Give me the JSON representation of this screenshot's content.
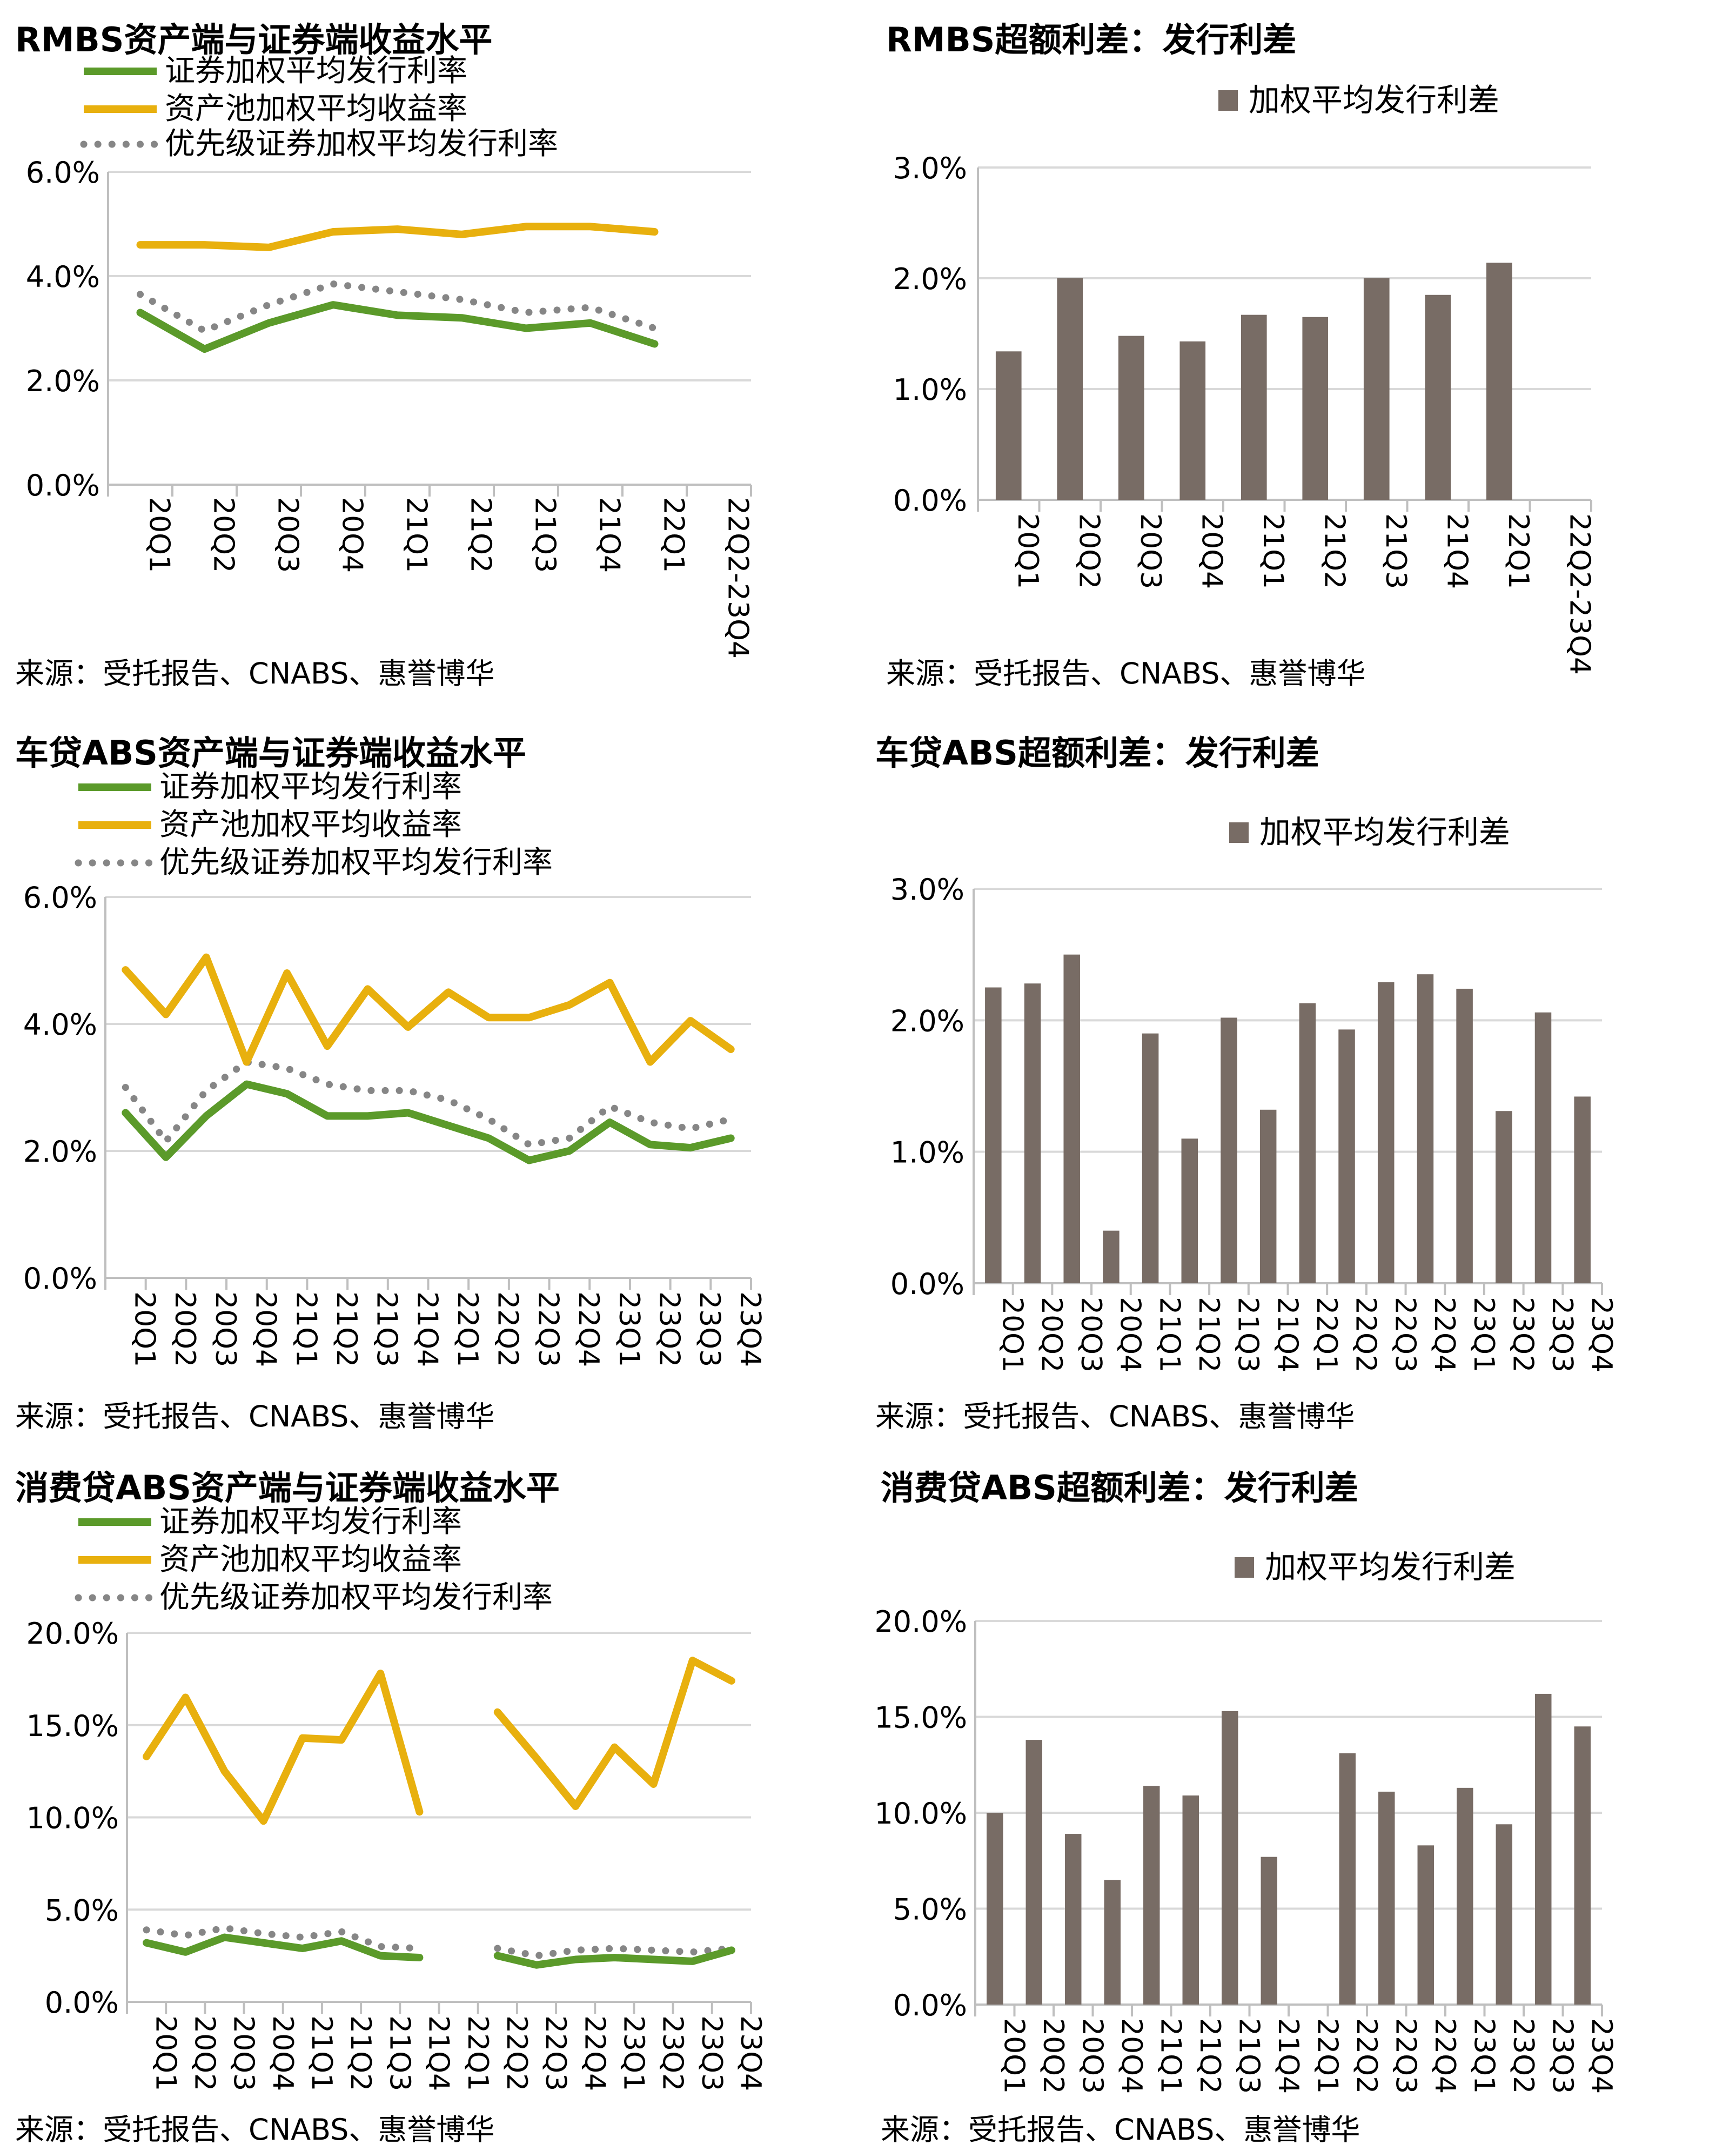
{
  "colors": {
    "green": "#5B9A2A",
    "gold": "#E8B00E",
    "dots": "#868686",
    "bar": "#786C65",
    "grid": "#D9D9D9",
    "axis": "#BFBFBF"
  },
  "legend_labels": {
    "green_line": "证券加权平均发行利率",
    "gold_line": "资产池加权平均收益率",
    "dotted_line": "优先级证券加权平均发行利率",
    "bar": "加权平均发行利差"
  },
  "chart_data": [
    {
      "type": "line",
      "title": "RMBS资产端与证券端收益水平",
      "source": "来源：受托报告、CNABS、惠誉博华",
      "categories": [
        "20Q1",
        "20Q2",
        "20Q3",
        "20Q4",
        "21Q1",
        "21Q2",
        "21Q3",
        "21Q4",
        "22Q1",
        "22Q2-23Q4"
      ],
      "y_ticks": [
        "0.0%",
        "2.0%",
        "4.0%",
        "6.0%"
      ],
      "ylim": [
        0,
        6
      ],
      "series": [
        {
          "name": "证券加权平均发行利率",
          "style": "green",
          "values": [
            3.3,
            2.6,
            3.1,
            3.45,
            3.25,
            3.2,
            3.0,
            3.1,
            2.7,
            null
          ]
        },
        {
          "name": "资产池加权平均收益率",
          "style": "gold",
          "values": [
            4.6,
            4.6,
            4.55,
            4.85,
            4.9,
            4.8,
            4.95,
            4.95,
            4.85,
            null
          ]
        },
        {
          "name": "优先级证券加权平均发行利率",
          "style": "dots",
          "values": [
            3.65,
            2.95,
            3.45,
            3.85,
            3.7,
            3.55,
            3.3,
            3.4,
            3.0,
            null
          ]
        }
      ]
    },
    {
      "type": "bar",
      "title": "RMBS超额利差：发行利差",
      "source": "来源：受托报告、CNABS、惠誉博华",
      "categories": [
        "20Q1",
        "20Q2",
        "20Q3",
        "20Q4",
        "21Q1",
        "21Q2",
        "21Q3",
        "21Q4",
        "22Q1",
        "22Q2-23Q4"
      ],
      "y_ticks": [
        "0.0%",
        "1.0%",
        "2.0%",
        "3.0%"
      ],
      "ylim": [
        0,
        3
      ],
      "series": [
        {
          "name": "加权平均发行利差",
          "values": [
            1.34,
            2.0,
            1.48,
            1.43,
            1.67,
            1.65,
            2.0,
            1.85,
            2.14,
            null
          ]
        }
      ]
    },
    {
      "type": "line",
      "title": "车贷ABS资产端与证券端收益水平",
      "source": "来源：受托报告、CNABS、惠誉博华",
      "categories": [
        "20Q1",
        "20Q2",
        "20Q3",
        "20Q4",
        "21Q1",
        "21Q2",
        "21Q3",
        "21Q4",
        "22Q1",
        "22Q2",
        "22Q3",
        "22Q4",
        "23Q1",
        "23Q2",
        "23Q3",
        "23Q4"
      ],
      "y_ticks": [
        "0.0%",
        "2.0%",
        "4.0%",
        "6.0%"
      ],
      "ylim": [
        0,
        6
      ],
      "series": [
        {
          "name": "证券加权平均发行利率",
          "style": "green",
          "values": [
            2.6,
            1.9,
            2.55,
            3.05,
            2.9,
            2.55,
            2.55,
            2.6,
            2.4,
            2.2,
            1.85,
            2.0,
            2.45,
            2.1,
            2.05,
            2.2
          ]
        },
        {
          "name": "资产池加权平均收益率",
          "style": "gold",
          "values": [
            4.85,
            4.15,
            5.05,
            3.4,
            4.8,
            3.65,
            4.55,
            3.95,
            4.5,
            4.1,
            4.1,
            4.3,
            4.65,
            3.4,
            4.05,
            3.6
          ]
        },
        {
          "name": "优先级证券加权平均发行利率",
          "style": "dots",
          "values": [
            3.0,
            2.15,
            2.95,
            3.4,
            3.3,
            3.05,
            2.95,
            2.95,
            2.8,
            2.5,
            2.1,
            2.2,
            2.7,
            2.45,
            2.35,
            2.5
          ]
        }
      ]
    },
    {
      "type": "bar",
      "title": "车贷ABS超额利差：发行利差",
      "source": "来源：受托报告、CNABS、惠誉博华",
      "categories": [
        "20Q1",
        "20Q2",
        "20Q3",
        "20Q4",
        "21Q1",
        "21Q2",
        "21Q3",
        "21Q4",
        "22Q1",
        "22Q2",
        "22Q3",
        "22Q4",
        "23Q1",
        "23Q2",
        "23Q3",
        "23Q4"
      ],
      "y_ticks": [
        "0.0%",
        "1.0%",
        "2.0%",
        "3.0%"
      ],
      "ylim": [
        0,
        3
      ],
      "series": [
        {
          "name": "加权平均发行利差",
          "values": [
            2.25,
            2.28,
            2.5,
            0.4,
            1.9,
            1.1,
            2.02,
            1.32,
            2.13,
            1.93,
            2.29,
            2.35,
            2.24,
            1.31,
            2.06,
            1.42
          ]
        }
      ]
    },
    {
      "type": "line",
      "title": "消费贷ABS资产端与证券端收益水平",
      "source": "来源：受托报告、CNABS、惠誉博华",
      "categories": [
        "20Q1",
        "20Q2",
        "20Q3",
        "20Q4",
        "21Q1",
        "21Q2",
        "21Q3",
        "21Q4",
        "22Q1",
        "22Q2",
        "22Q3",
        "22Q4",
        "23Q1",
        "23Q2",
        "23Q3",
        "23Q4"
      ],
      "y_ticks": [
        "0.0%",
        "5.0%",
        "10.0%",
        "15.0%",
        "20.0%"
      ],
      "ylim": [
        0,
        20
      ],
      "series": [
        {
          "name": "证券加权平均发行利率",
          "style": "green",
          "values": [
            3.2,
            2.7,
            3.5,
            3.2,
            2.9,
            3.3,
            2.5,
            2.4,
            null,
            2.5,
            2.0,
            2.3,
            2.4,
            2.3,
            2.2,
            2.8
          ]
        },
        {
          "name": "资产池加权平均收益率",
          "style": "gold",
          "values": [
            13.3,
            16.5,
            12.5,
            9.8,
            14.3,
            14.2,
            17.8,
            10.3,
            null,
            15.7,
            13.2,
            10.6,
            13.8,
            11.8,
            18.5,
            17.4
          ]
        },
        {
          "name": "优先级证券加权平均发行利率",
          "style": "dots",
          "values": [
            3.9,
            3.6,
            4.0,
            3.7,
            3.5,
            3.8,
            3.0,
            2.9,
            null,
            2.9,
            2.5,
            2.8,
            2.9,
            2.8,
            2.7,
            2.9
          ]
        }
      ]
    },
    {
      "type": "bar",
      "title": "消费贷ABS超额利差：发行利差",
      "source": "来源：受托报告、CNABS、惠誉博华",
      "categories": [
        "20Q1",
        "20Q2",
        "20Q3",
        "20Q4",
        "21Q1",
        "21Q2",
        "21Q3",
        "21Q4",
        "22Q1",
        "22Q2",
        "22Q3",
        "22Q4",
        "23Q1",
        "23Q2",
        "23Q3",
        "23Q4"
      ],
      "y_ticks": [
        "0.0%",
        "5.0%",
        "10.0%",
        "15.0%",
        "20.0%"
      ],
      "ylim": [
        0,
        20
      ],
      "series": [
        {
          "name": "加权平均发行利差",
          "values": [
            10.0,
            13.8,
            8.9,
            6.5,
            11.4,
            10.9,
            15.3,
            7.7,
            null,
            13.1,
            11.1,
            8.3,
            11.3,
            9.4,
            16.2,
            14.5
          ]
        }
      ]
    }
  ]
}
